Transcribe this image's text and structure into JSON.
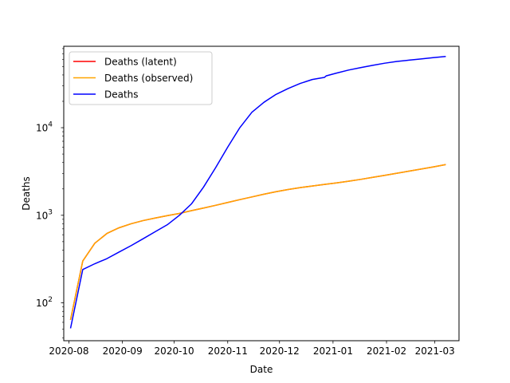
{
  "chart_data": {
    "type": "line",
    "xlabel": "Date",
    "ylabel": "Deaths",
    "yscale": "log",
    "xlim": [
      "2020-07-29",
      "2021-03-15"
    ],
    "ylim": [
      37,
      85000
    ],
    "x_ticks": [
      "2020-08",
      "2020-09",
      "2020-10",
      "2020-11",
      "2020-12",
      "2021-01",
      "2021-02",
      "2021-03"
    ],
    "y_ticks": [
      {
        "value": 100,
        "base": "10",
        "exp": "2"
      },
      {
        "value": 1000,
        "base": "10",
        "exp": "3"
      },
      {
        "value": 10000,
        "base": "10",
        "exp": "4"
      }
    ],
    "legend": "top-left",
    "grid": false,
    "series": [
      {
        "name": "Deaths (latent)",
        "color": "#ff0000",
        "x": [
          "2020-08-02",
          "2020-08-09",
          "2020-08-16",
          "2020-08-23",
          "2020-08-30",
          "2020-09-06",
          "2020-09-13",
          "2020-09-20",
          "2020-09-27",
          "2020-10-04",
          "2020-10-11",
          "2020-10-18",
          "2020-10-25",
          "2020-11-01",
          "2020-11-08",
          "2020-11-15",
          "2020-11-22",
          "2020-11-29",
          "2020-12-06",
          "2020-12-13",
          "2020-12-20",
          "2020-12-27",
          "2021-01-03",
          "2021-01-10",
          "2021-01-17",
          "2021-01-24",
          "2021-01-31",
          "2021-02-07",
          "2021-02-14",
          "2021-02-21",
          "2021-02-28",
          "2021-03-07"
        ],
        "values": [
          65,
          300,
          480,
          620,
          720,
          800,
          870,
          930,
          990,
          1050,
          1130,
          1210,
          1300,
          1400,
          1510,
          1620,
          1740,
          1860,
          1970,
          2070,
          2160,
          2250,
          2340,
          2450,
          2570,
          2710,
          2860,
          3020,
          3190,
          3370,
          3560,
          3780
        ]
      },
      {
        "name": "Deaths (observed)",
        "color": "#ffa500",
        "x": [
          "2020-08-02",
          "2020-08-09",
          "2020-08-16",
          "2020-08-23",
          "2020-08-30",
          "2020-09-06",
          "2020-09-13",
          "2020-09-20",
          "2020-09-27",
          "2020-10-04",
          "2020-10-11",
          "2020-10-18",
          "2020-10-25",
          "2020-11-01",
          "2020-11-08",
          "2020-11-15",
          "2020-11-22",
          "2020-11-29",
          "2020-12-06",
          "2020-12-13",
          "2020-12-20",
          "2020-12-27",
          "2021-01-03",
          "2021-01-10",
          "2021-01-17",
          "2021-01-24",
          "2021-01-31",
          "2021-02-07",
          "2021-02-14",
          "2021-02-21",
          "2021-02-28",
          "2021-03-07"
        ],
        "values": [
          65,
          300,
          480,
          620,
          720,
          800,
          870,
          930,
          990,
          1050,
          1130,
          1210,
          1300,
          1400,
          1510,
          1620,
          1740,
          1860,
          1970,
          2070,
          2160,
          2250,
          2340,
          2450,
          2570,
          2710,
          2860,
          3020,
          3190,
          3370,
          3560,
          3780
        ]
      },
      {
        "name": "Deaths",
        "color": "#0000ff",
        "x": [
          "2020-08-02",
          "2020-08-09",
          "2020-08-16",
          "2020-08-23",
          "2020-08-30",
          "2020-09-06",
          "2020-09-13",
          "2020-09-20",
          "2020-09-27",
          "2020-10-04",
          "2020-10-11",
          "2020-10-18",
          "2020-10-25",
          "2020-11-01",
          "2020-11-08",
          "2020-11-15",
          "2020-11-22",
          "2020-11-29",
          "2020-12-06",
          "2020-12-13",
          "2020-12-20",
          "2020-12-27",
          "2020-12-28",
          "2021-01-03",
          "2021-01-10",
          "2021-01-17",
          "2021-01-24",
          "2021-01-31",
          "2021-02-07",
          "2021-02-14",
          "2021-02-21",
          "2021-02-28",
          "2021-03-07"
        ],
        "values": [
          52,
          240,
          280,
          320,
          380,
          450,
          540,
          650,
          780,
          1000,
          1350,
          2100,
          3500,
          6000,
          10000,
          15000,
          19500,
          24000,
          28000,
          32000,
          35500,
          37500,
          39000,
          42000,
          45500,
          48500,
          51500,
          54500,
          57000,
          59000,
          61000,
          63000,
          65000
        ]
      }
    ]
  }
}
